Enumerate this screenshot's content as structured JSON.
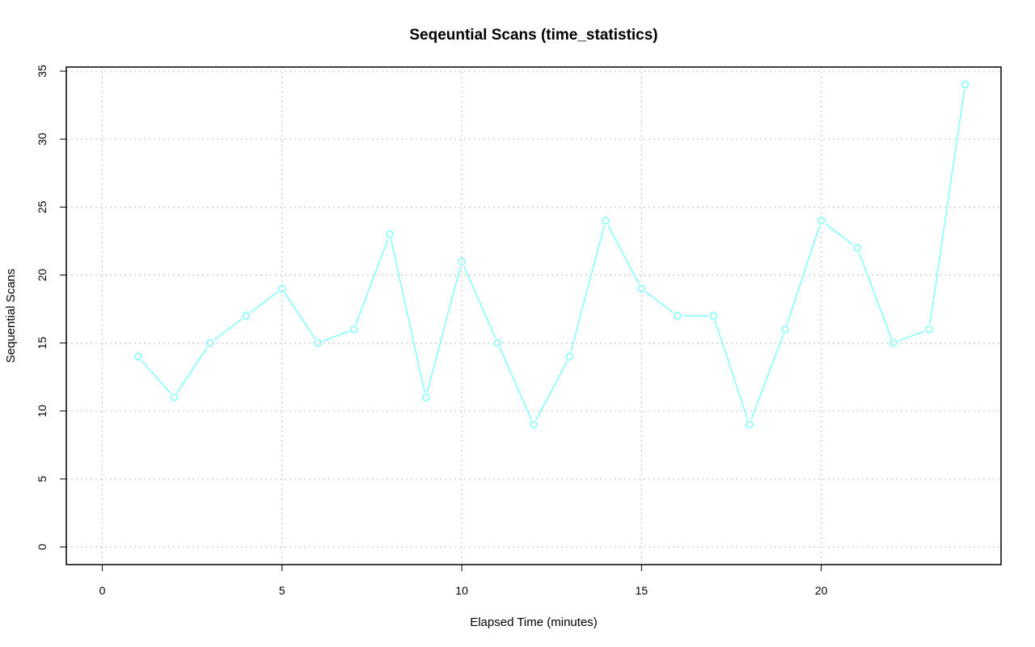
{
  "chart_data": {
    "type": "line",
    "title": "Seqeuntial Scans (time_statistics)",
    "xlabel": "Elapsed Time (minutes)",
    "ylabel": "Sequential Scans",
    "xlim": [
      -1,
      25
    ],
    "ylim": [
      -1.3,
      35.3
    ],
    "xticks": [
      0,
      5,
      10,
      15,
      20
    ],
    "yticks": [
      0,
      5,
      10,
      15,
      20,
      25,
      30,
      35
    ],
    "grid": true,
    "series": [
      {
        "color": "#7fffff",
        "marker": "open-circle",
        "x": [
          1,
          2,
          3,
          4,
          5,
          6,
          7,
          8,
          9,
          10,
          11,
          12,
          13,
          14,
          15,
          16,
          17,
          18,
          19,
          20,
          21,
          22,
          23,
          24
        ],
        "y": [
          14,
          11,
          15,
          17,
          19,
          15,
          16,
          23,
          11,
          21,
          15,
          9,
          14,
          24,
          19,
          17,
          17,
          9,
          16,
          24,
          22,
          15,
          16,
          34
        ]
      }
    ]
  }
}
